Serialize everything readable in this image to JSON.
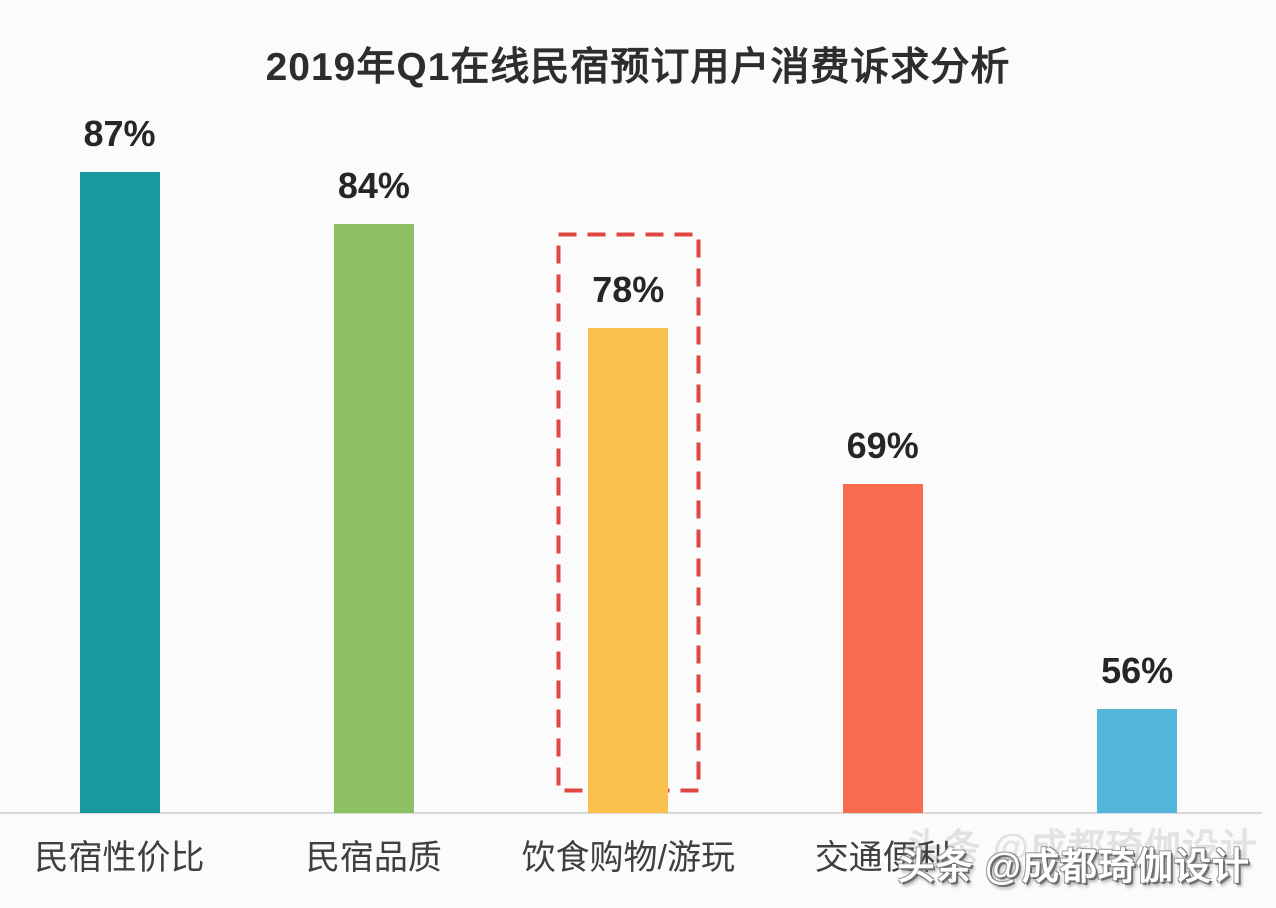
{
  "chart_data": {
    "type": "bar",
    "title": "2019年Q1在线民宿预订用户消费诉求分析",
    "categories": [
      "民宿性价比",
      "民宿品质",
      "饮食购物/游玩",
      "交通便利",
      ""
    ],
    "values": [
      87,
      84,
      78,
      69,
      56
    ],
    "value_labels": [
      "87%",
      "84%",
      "78%",
      "69%",
      "56%"
    ],
    "unit": "%",
    "bar_colors": [
      "#17999f",
      "#8cc063",
      "#f9c04e",
      "#f96b4f",
      "#52b7d8"
    ],
    "highlight_index": 2,
    "highlighted_category": "饮食购物/游玩",
    "highlight_color": "#de4742",
    "xlabel": "",
    "ylabel": "",
    "ylim": [
      50,
      97
    ],
    "grid": false,
    "legend": false,
    "value_label_color": "#262626",
    "category_label_color": "#3f3f3f",
    "baseline_color": "#d9d9d9",
    "background_color": "#fbfbfb"
  },
  "watermark": {
    "text": "头条 @成都琦伽设计"
  }
}
